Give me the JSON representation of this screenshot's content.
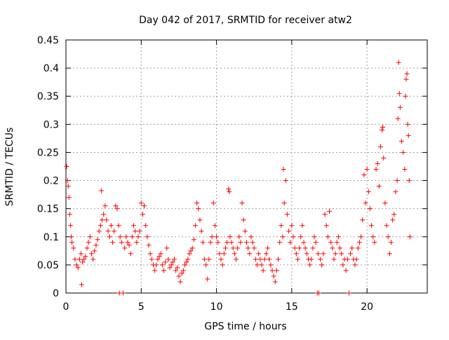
{
  "chart_data": {
    "type": "scatter",
    "title": "Day 042 of 2017, SRMTID for receiver atw2",
    "xlabel": "GPS time / hours",
    "ylabel": "SRMTID / TECUs",
    "xlim": [
      0,
      24
    ],
    "ylim": [
      0,
      0.45
    ],
    "xticks": [
      0,
      5,
      10,
      15,
      20
    ],
    "xtick_labels": [
      "0",
      "5",
      "10",
      "15",
      "20"
    ],
    "yticks": [
      0,
      0.05,
      0.1,
      0.15,
      0.2,
      0.25,
      0.3,
      0.35,
      0.4,
      0.45
    ],
    "ytick_labels": [
      "0",
      "0.05",
      "0.1",
      "0.15",
      "0.2",
      "0.25",
      "0.3",
      "0.35",
      "0.4",
      "0.45"
    ],
    "grid": true,
    "marker": "plus",
    "series": [
      {
        "name": "SRMTID",
        "color": "#ff0000",
        "points": [
          [
            0.05,
            0.225
          ],
          [
            0.1,
            0.2
          ],
          [
            0.15,
            0.19
          ],
          [
            0.2,
            0.17
          ],
          [
            0.25,
            0.14
          ],
          [
            0.3,
            0.12
          ],
          [
            0.35,
            0.1
          ],
          [
            0.4,
            0.09
          ],
          [
            0.5,
            0.08
          ],
          [
            0.6,
            0.06
          ],
          [
            0.7,
            0.05
          ],
          [
            0.8,
            0.045
          ],
          [
            0.9,
            0.06
          ],
          [
            1.0,
            0.07
          ],
          [
            1.05,
            0.015
          ],
          [
            1.1,
            0.055
          ],
          [
            1.2,
            0.06
          ],
          [
            1.3,
            0.065
          ],
          [
            1.4,
            0.08
          ],
          [
            1.5,
            0.09
          ],
          [
            1.6,
            0.1
          ],
          [
            1.7,
            0.07
          ],
          [
            1.8,
            0.06
          ],
          [
            1.9,
            0.075
          ],
          [
            2.0,
            0.085
          ],
          [
            2.1,
            0.095
          ],
          [
            2.2,
            0.11
          ],
          [
            2.3,
            0.12
          ],
          [
            2.35,
            0.182
          ],
          [
            2.4,
            0.13
          ],
          [
            2.5,
            0.14
          ],
          [
            2.6,
            0.155
          ],
          [
            2.7,
            0.13
          ],
          [
            2.8,
            0.11
          ],
          [
            2.9,
            0.1
          ],
          [
            3.0,
            0.12
          ],
          [
            3.1,
            0.09
          ],
          [
            3.2,
            0.11
          ],
          [
            3.3,
            0.155
          ],
          [
            3.4,
            0.15
          ],
          [
            3.5,
            0.12
          ],
          [
            3.55,
            0.0
          ],
          [
            3.6,
            0.1
          ],
          [
            3.7,
            0.09
          ],
          [
            3.8,
            0.0
          ],
          [
            3.9,
            0.08
          ],
          [
            4.0,
            0.1
          ],
          [
            4.1,
            0.09
          ],
          [
            4.2,
            0.085
          ],
          [
            4.3,
            0.07
          ],
          [
            4.4,
            0.1
          ],
          [
            4.5,
            0.12
          ],
          [
            4.6,
            0.11
          ],
          [
            4.7,
            0.09
          ],
          [
            4.8,
            0.1
          ],
          [
            4.9,
            0.11
          ],
          [
            5.0,
            0.16
          ],
          [
            5.1,
            0.14
          ],
          [
            5.2,
            0.155
          ],
          [
            5.3,
            0.12
          ],
          [
            5.4,
            0.1
          ],
          [
            5.5,
            0.085
          ],
          [
            5.6,
            0.07
          ],
          [
            5.7,
            0.06
          ],
          [
            5.8,
            0.05
          ],
          [
            5.9,
            0.04
          ],
          [
            6.0,
            0.05
          ],
          [
            6.1,
            0.06
          ],
          [
            6.2,
            0.065
          ],
          [
            6.3,
            0.07
          ],
          [
            6.4,
            0.05
          ],
          [
            6.5,
            0.04
          ],
          [
            6.6,
            0.055
          ],
          [
            6.7,
            0.08
          ],
          [
            6.8,
            0.06
          ],
          [
            6.9,
            0.045
          ],
          [
            7.0,
            0.05
          ],
          [
            7.1,
            0.055
          ],
          [
            7.2,
            0.06
          ],
          [
            7.3,
            0.04
          ],
          [
            7.4,
            0.045
          ],
          [
            7.5,
            0.03
          ],
          [
            7.6,
            0.02
          ],
          [
            7.7,
            0.035
          ],
          [
            7.8,
            0.04
          ],
          [
            7.9,
            0.05
          ],
          [
            8.0,
            0.055
          ],
          [
            8.1,
            0.06
          ],
          [
            8.2,
            0.07
          ],
          [
            8.3,
            0.075
          ],
          [
            8.4,
            0.08
          ],
          [
            8.5,
            0.095
          ],
          [
            8.6,
            0.12
          ],
          [
            8.7,
            0.16
          ],
          [
            8.8,
            0.15
          ],
          [
            8.9,
            0.13
          ],
          [
            9.0,
            0.11
          ],
          [
            9.1,
            0.09
          ],
          [
            9.2,
            0.06
          ],
          [
            9.3,
            0.05
          ],
          [
            9.4,
            0.025
          ],
          [
            9.5,
            0.06
          ],
          [
            9.6,
            0.09
          ],
          [
            9.7,
            0.1
          ],
          [
            9.8,
            0.16
          ],
          [
            9.9,
            0.12
          ],
          [
            10.0,
            0.1
          ],
          [
            10.1,
            0.09
          ],
          [
            10.2,
            0.07
          ],
          [
            10.3,
            0.06
          ],
          [
            10.4,
            0.05
          ],
          [
            10.5,
            0.07
          ],
          [
            10.6,
            0.08
          ],
          [
            10.7,
            0.09
          ],
          [
            10.8,
            0.185
          ],
          [
            10.85,
            0.18
          ],
          [
            10.9,
            0.1
          ],
          [
            11.0,
            0.09
          ],
          [
            11.1,
            0.08
          ],
          [
            11.2,
            0.07
          ],
          [
            11.3,
            0.06
          ],
          [
            11.4,
            0.08
          ],
          [
            11.5,
            0.1
          ],
          [
            11.6,
            0.09
          ],
          [
            11.7,
            0.16
          ],
          [
            11.8,
            0.13
          ],
          [
            11.9,
            0.11
          ],
          [
            12.0,
            0.09
          ],
          [
            12.1,
            0.08
          ],
          [
            12.2,
            0.07
          ],
          [
            12.3,
            0.1
          ],
          [
            12.4,
            0.09
          ],
          [
            12.5,
            0.08
          ],
          [
            12.6,
            0.06
          ],
          [
            12.7,
            0.05
          ],
          [
            12.8,
            0.07
          ],
          [
            12.9,
            0.06
          ],
          [
            13.0,
            0.05
          ],
          [
            13.1,
            0.04
          ],
          [
            13.2,
            0.06
          ],
          [
            13.3,
            0.07
          ],
          [
            13.4,
            0.08
          ],
          [
            13.5,
            0.06
          ],
          [
            13.6,
            0.05
          ],
          [
            13.7,
            0.04
          ],
          [
            13.8,
            0.03
          ],
          [
            13.9,
            0.02
          ],
          [
            14.0,
            0.04
          ],
          [
            14.1,
            0.06
          ],
          [
            14.2,
            0.09
          ],
          [
            14.3,
            0.12
          ],
          [
            14.4,
            0.1
          ],
          [
            14.45,
            0.22
          ],
          [
            14.5,
            0.16
          ],
          [
            14.6,
            0.2
          ],
          [
            14.7,
            0.14
          ],
          [
            14.8,
            0.11
          ],
          [
            14.9,
            0.09
          ],
          [
            15.0,
            0.12
          ],
          [
            15.1,
            0.1
          ],
          [
            15.2,
            0.08
          ],
          [
            15.3,
            0.07
          ],
          [
            15.4,
            0.06
          ],
          [
            15.5,
            0.08
          ],
          [
            15.6,
            0.1
          ],
          [
            15.7,
            0.12
          ],
          [
            15.8,
            0.09
          ],
          [
            15.9,
            0.08
          ],
          [
            16.0,
            0.07
          ],
          [
            16.1,
            0.06
          ],
          [
            16.2,
            0.05
          ],
          [
            16.3,
            0.06
          ],
          [
            16.4,
            0.08
          ],
          [
            16.5,
            0.1
          ],
          [
            16.6,
            0.09
          ],
          [
            16.7,
            0.0
          ],
          [
            16.75,
            0.07
          ],
          [
            16.8,
            0.0
          ],
          [
            16.9,
            0.06
          ],
          [
            17.0,
            0.05
          ],
          [
            17.1,
            0.07
          ],
          [
            17.2,
            0.14
          ],
          [
            17.3,
            0.12
          ],
          [
            17.4,
            0.1
          ],
          [
            17.5,
            0.145
          ],
          [
            17.6,
            0.09
          ],
          [
            17.7,
            0.08
          ],
          [
            17.8,
            0.06
          ],
          [
            17.9,
            0.07
          ],
          [
            18.0,
            0.09
          ],
          [
            18.1,
            0.1
          ],
          [
            18.2,
            0.08
          ],
          [
            18.3,
            0.07
          ],
          [
            18.4,
            0.05
          ],
          [
            18.5,
            0.06
          ],
          [
            18.6,
            0.04
          ],
          [
            18.7,
            0.06
          ],
          [
            18.8,
            0.0
          ],
          [
            18.9,
            0.07
          ],
          [
            19.0,
            0.08
          ],
          [
            19.1,
            0.06
          ],
          [
            19.2,
            0.05
          ],
          [
            19.3,
            0.06
          ],
          [
            19.4,
            0.08
          ],
          [
            19.5,
            0.09
          ],
          [
            19.6,
            0.1
          ],
          [
            19.7,
            0.13
          ],
          [
            19.8,
            0.21
          ],
          [
            19.9,
            0.16
          ],
          [
            20.0,
            0.22
          ],
          [
            20.1,
            0.18
          ],
          [
            20.2,
            0.15
          ],
          [
            20.3,
            0.12
          ],
          [
            20.4,
            0.1
          ],
          [
            20.5,
            0.09
          ],
          [
            20.6,
            0.22
          ],
          [
            20.7,
            0.23
          ],
          [
            20.8,
            0.19
          ],
          [
            20.9,
            0.26
          ],
          [
            21.0,
            0.29
          ],
          [
            21.05,
            0.295
          ],
          [
            21.1,
            0.24
          ],
          [
            21.2,
            0.16
          ],
          [
            21.3,
            0.12
          ],
          [
            21.4,
            0.1
          ],
          [
            21.5,
            0.07
          ],
          [
            21.6,
            0.09
          ],
          [
            21.7,
            0.13
          ],
          [
            21.8,
            0.14
          ],
          [
            21.9,
            0.18
          ],
          [
            22.0,
            0.2
          ],
          [
            22.05,
            0.31
          ],
          [
            22.1,
            0.41
          ],
          [
            22.15,
            0.355
          ],
          [
            22.2,
            0.33
          ],
          [
            22.3,
            0.27
          ],
          [
            22.4,
            0.25
          ],
          [
            22.5,
            0.22
          ],
          [
            22.55,
            0.35
          ],
          [
            22.6,
            0.38
          ],
          [
            22.65,
            0.39
          ],
          [
            22.7,
            0.3
          ],
          [
            22.75,
            0.28
          ],
          [
            22.8,
            0.2
          ],
          [
            22.85,
            0.1
          ]
        ]
      }
    ]
  }
}
